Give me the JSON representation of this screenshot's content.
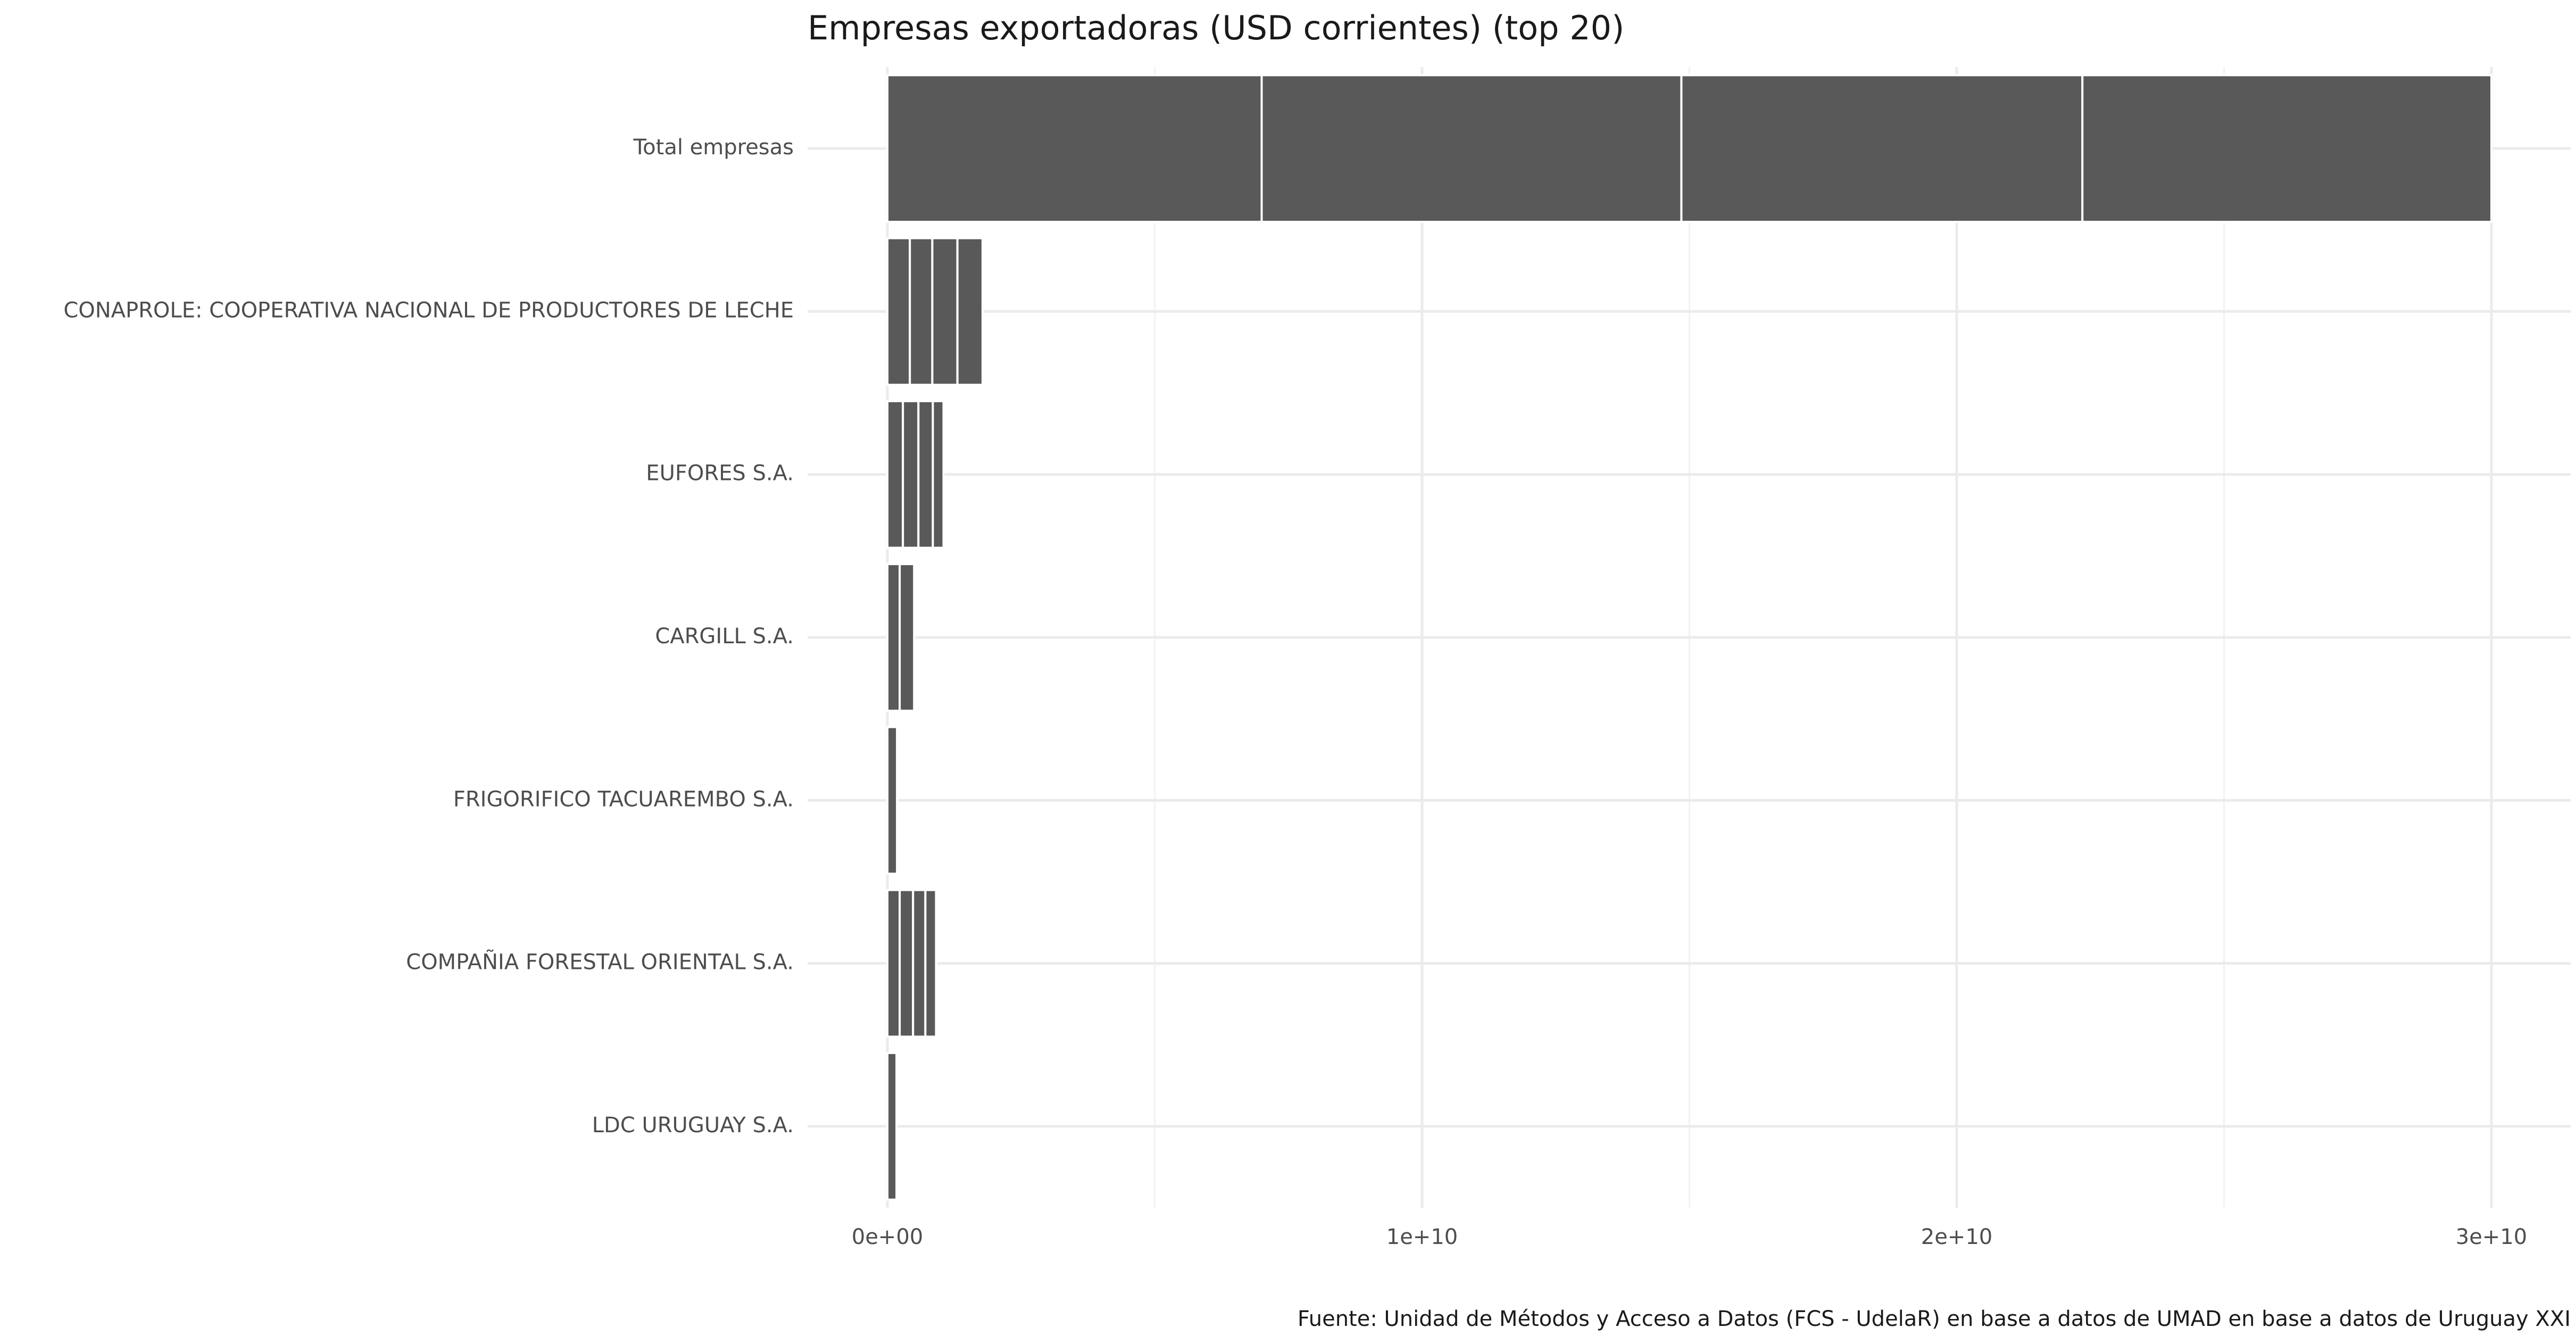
{
  "chart_data": {
    "type": "bar",
    "orientation": "horizontal",
    "stacked": true,
    "title": "Empresas exportadoras (USD corrientes) (top 20)",
    "caption": "Fuente: Unidad de Métodos y Acceso a Datos (FCS - UdelaR) en base a datos de UMAD en base a datos de Uruguay XXI",
    "xlabel": "",
    "ylabel": "",
    "xlim": [
      0,
      30000000000
    ],
    "x_ticks": [
      0,
      10000000000,
      20000000000,
      30000000000
    ],
    "x_tick_labels": [
      "0e+00",
      "1e+10",
      "2e+10",
      "3e+10"
    ],
    "grid": true,
    "legend": "none",
    "colors": {
      "bar_fill": "#595959",
      "segment_border": "#ffffff",
      "grid_major": "#ebebeb",
      "grid_minor": "#f2f2f2",
      "background": "#ffffff"
    },
    "categories": [
      "Total empresas",
      "CONAPROLE: COOPERATIVA NACIONAL DE PRODUCTORES DE LECHE",
      "EUFORES S.A.",
      "CARGILL S.A.",
      "FRIGORIFICO TACUAREMBO S.A.",
      "COMPAÑIA FORESTAL ORIENTAL S.A.",
      "LDC URUGUAY S.A."
    ],
    "stacked_segments": [
      [
        7000000000,
        7850000000,
        7500000000,
        7650000000
      ],
      [
        420000000,
        420000000,
        470000000,
        470000000
      ],
      [
        290000000,
        290000000,
        270000000,
        200000000
      ],
      [
        230000000,
        270000000
      ],
      [
        180000000
      ],
      [
        230000000,
        250000000,
        230000000,
        200000000
      ],
      [
        170000000
      ]
    ],
    "totals": [
      30000000000,
      1780000000,
      1050000000,
      500000000,
      180000000,
      910000000,
      170000000
    ]
  }
}
